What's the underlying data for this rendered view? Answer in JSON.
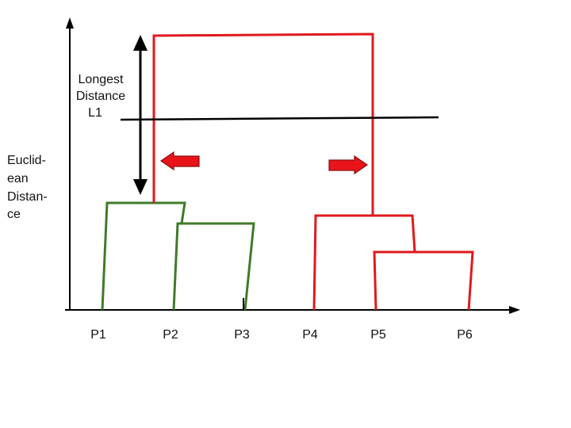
{
  "annotation": {
    "lines": [
      "Longest",
      "Distance",
      "L1"
    ]
  },
  "y_axis_label": {
    "lines": [
      "Euclid-",
      "ean",
      "Distan-",
      "ce"
    ]
  },
  "points": {
    "p1": "P1",
    "p2": "P2",
    "p3": "P3",
    "p4": "P4",
    "p5": "P5",
    "p6": "P6"
  },
  "colors": {
    "cluster_a": "#3f7a2a",
    "cluster_b": "#e0191e",
    "axis": "#000000",
    "arrow_fill": "#e8141a"
  }
}
